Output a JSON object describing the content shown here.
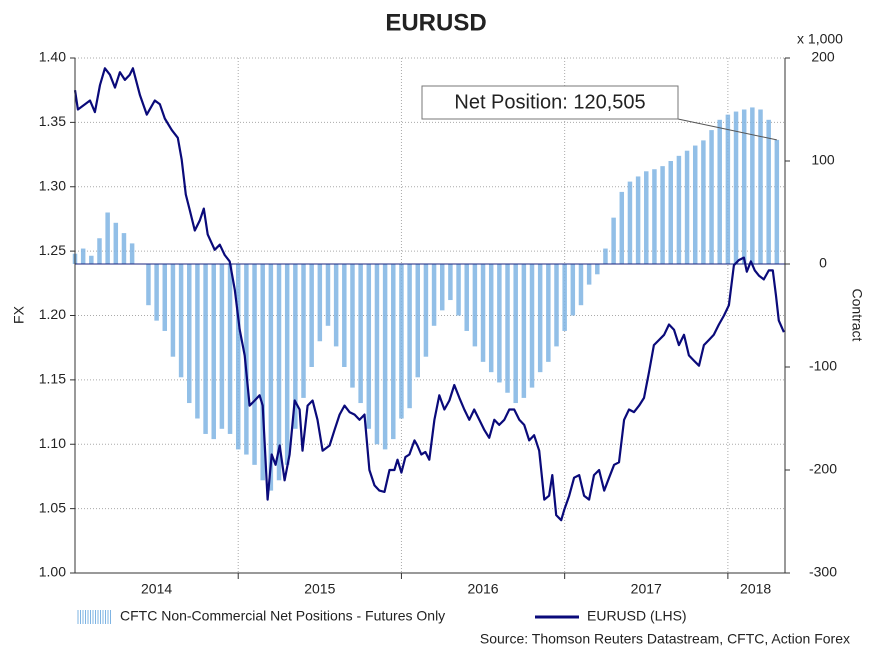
{
  "chart_data": {
    "type": "bar-line",
    "title": "EURUSD",
    "y_label": "FX",
    "y2_label": "Contract",
    "y2_unit": "x 1,000",
    "source": "Source: Thomson Reuters Datastream, CFTC, Action Forex",
    "annotation": "Net Position: 120,505",
    "xlim": [
      2014,
      2018.35
    ],
    "xticks": [
      {
        "value": 2014.5,
        "label": "2014"
      },
      {
        "value": 2015.5,
        "label": "2015"
      },
      {
        "value": 2016.5,
        "label": "2016"
      },
      {
        "value": 2017.5,
        "label": "2017"
      },
      {
        "value": 2018.17,
        "label": "2018"
      }
    ],
    "xgrid": [
      2015,
      2016,
      2017,
      2018
    ],
    "ylim": [
      1.0,
      1.4
    ],
    "yticks": [
      {
        "value": 1,
        "label": "1.00"
      },
      1.05,
      {
        "value": 1.1,
        "label": "1.10"
      },
      1.15,
      {
        "value": 1.2,
        "label": "1.20"
      },
      1.25,
      {
        "value": 1.3,
        "label": "1.30"
      },
      1.35,
      {
        "value": 1.4,
        "label": "1.40"
      }
    ],
    "y2lim": [
      -300,
      200
    ],
    "y2ticks": [
      200,
      100,
      0,
      -100,
      -200,
      -300
    ],
    "grid": true,
    "series": [
      {
        "name": "CFTC Non-Commercial Net Positions - Futures Only",
        "type": "bar",
        "axis": "y2",
        "color": "#7fb4e3",
        "x": [
          2014.0,
          2014.05,
          2014.1,
          2014.15,
          2014.2,
          2014.25,
          2014.3,
          2014.35,
          2014.4,
          2014.45,
          2014.5,
          2014.55,
          2014.6,
          2014.65,
          2014.7,
          2014.75,
          2014.8,
          2014.85,
          2014.9,
          2014.95,
          2015.0,
          2015.05,
          2015.1,
          2015.15,
          2015.2,
          2015.25,
          2015.3,
          2015.35,
          2015.4,
          2015.45,
          2015.5,
          2015.55,
          2015.6,
          2015.65,
          2015.7,
          2015.75,
          2015.8,
          2015.85,
          2015.9,
          2015.95,
          2016.0,
          2016.05,
          2016.1,
          2016.15,
          2016.2,
          2016.25,
          2016.3,
          2016.35,
          2016.4,
          2016.45,
          2016.5,
          2016.55,
          2016.6,
          2016.65,
          2016.7,
          2016.75,
          2016.8,
          2016.85,
          2016.9,
          2016.95,
          2017.0,
          2017.05,
          2017.1,
          2017.15,
          2017.2,
          2017.25,
          2017.3,
          2017.35,
          2017.4,
          2017.45,
          2017.5,
          2017.55,
          2017.6,
          2017.65,
          2017.7,
          2017.75,
          2017.8,
          2017.85,
          2017.9,
          2017.95,
          2018.0,
          2018.05,
          2018.1,
          2018.15,
          2018.2,
          2018.25,
          2018.3
        ],
        "values": [
          10,
          15,
          8,
          25,
          50,
          40,
          30,
          20,
          0,
          -40,
          -55,
          -65,
          -90,
          -110,
          -135,
          -150,
          -165,
          -170,
          -160,
          -165,
          -180,
          -185,
          -195,
          -210,
          -220,
          -210,
          -195,
          -160,
          -130,
          -100,
          -75,
          -60,
          -80,
          -100,
          -120,
          -135,
          -160,
          -175,
          -180,
          -170,
          -150,
          -140,
          -110,
          -90,
          -60,
          -45,
          -35,
          -50,
          -65,
          -80,
          -95,
          -105,
          -115,
          -125,
          -135,
          -130,
          -120,
          -105,
          -95,
          -80,
          -65,
          -50,
          -40,
          -20,
          -10,
          15,
          45,
          70,
          80,
          85,
          90,
          92,
          95,
          100,
          105,
          110,
          115,
          120,
          130,
          140,
          145,
          148,
          150,
          152,
          150,
          140,
          120.505
        ]
      },
      {
        "name": "EURUSD (LHS)",
        "type": "line",
        "axis": "y",
        "color": "#0a0a7a",
        "x": [
          2014.0,
          2014.018,
          2014.061,
          2014.092,
          2014.122,
          2014.153,
          2014.183,
          2014.214,
          2014.245,
          2014.275,
          2014.306,
          2014.336,
          2014.355,
          2014.398,
          2014.44,
          2014.489,
          2014.52,
          2014.55,
          2014.593,
          2014.63,
          2014.654,
          2014.679,
          2014.703,
          2014.734,
          2014.765,
          2014.789,
          2014.813,
          2014.856,
          2014.887,
          2014.917,
          2014.948,
          2014.979,
          2015.009,
          2015.04,
          2015.07,
          2015.101,
          2015.131,
          2015.15,
          2015.18,
          2015.205,
          2015.229,
          2015.254,
          2015.284,
          2015.315,
          2015.346,
          2015.376,
          2015.394,
          2015.425,
          2015.456,
          2015.486,
          2015.517,
          2015.56,
          2015.59,
          2015.621,
          2015.651,
          2015.682,
          2015.713,
          2015.743,
          2015.774,
          2015.804,
          2015.835,
          2015.865,
          2015.896,
          2015.927,
          2015.957,
          2015.976,
          2016.0,
          2016.024,
          2016.049,
          2016.08,
          2016.098,
          2016.122,
          2016.147,
          2016.171,
          2016.202,
          2016.232,
          2016.263,
          2016.294,
          2016.324,
          2016.355,
          2016.385,
          2016.416,
          2016.446,
          2016.477,
          2016.508,
          2016.538,
          2016.569,
          2016.599,
          2016.63,
          2016.661,
          2016.691,
          2016.722,
          2016.752,
          2016.783,
          2016.813,
          2016.844,
          2016.875,
          2016.905,
          2016.924,
          2016.948,
          2016.979,
          2016.997,
          2017.028,
          2017.058,
          2017.089,
          2017.119,
          2017.15,
          2017.18,
          2017.211,
          2017.242,
          2017.272,
          2017.303,
          2017.333,
          2017.364,
          2017.394,
          2017.425,
          2017.456,
          2017.486,
          2017.517,
          2017.547,
          2017.578,
          2017.609,
          2017.639,
          2017.67,
          2017.7,
          2017.731,
          2017.761,
          2017.792,
          2017.823,
          2017.853,
          2017.884,
          2017.914,
          2017.945,
          2017.976,
          2018.006,
          2018.037,
          2018.067,
          2018.098,
          2018.116,
          2018.141,
          2018.165,
          2018.19,
          2018.22,
          2018.251,
          2018.275,
          2018.294,
          2018.312,
          2018.343
        ],
        "values": [
          1.375,
          1.36,
          1.364,
          1.367,
          1.358,
          1.379,
          1.392,
          1.387,
          1.377,
          1.389,
          1.383,
          1.387,
          1.392,
          1.371,
          1.356,
          1.367,
          1.364,
          1.353,
          1.344,
          1.338,
          1.321,
          1.294,
          1.282,
          1.266,
          1.274,
          1.283,
          1.263,
          1.251,
          1.255,
          1.247,
          1.242,
          1.22,
          1.189,
          1.169,
          1.13,
          1.134,
          1.138,
          1.13,
          1.057,
          1.092,
          1.084,
          1.099,
          1.072,
          1.092,
          1.134,
          1.127,
          1.095,
          1.13,
          1.134,
          1.119,
          1.095,
          1.099,
          1.111,
          1.123,
          1.13,
          1.125,
          1.123,
          1.119,
          1.123,
          1.08,
          1.068,
          1.064,
          1.063,
          1.08,
          1.08,
          1.088,
          1.078,
          1.09,
          1.092,
          1.103,
          1.099,
          1.092,
          1.094,
          1.088,
          1.119,
          1.138,
          1.127,
          1.134,
          1.146,
          1.136,
          1.127,
          1.119,
          1.127,
          1.119,
          1.111,
          1.105,
          1.119,
          1.115,
          1.119,
          1.127,
          1.127,
          1.119,
          1.115,
          1.103,
          1.107,
          1.095,
          1.057,
          1.06,
          1.076,
          1.045,
          1.041,
          1.049,
          1.06,
          1.074,
          1.076,
          1.06,
          1.057,
          1.076,
          1.08,
          1.064,
          1.074,
          1.084,
          1.086,
          1.119,
          1.127,
          1.125,
          1.13,
          1.136,
          1.156,
          1.177,
          1.181,
          1.185,
          1.193,
          1.189,
          1.177,
          1.185,
          1.169,
          1.165,
          1.161,
          1.177,
          1.181,
          1.185,
          1.193,
          1.2,
          1.208,
          1.239,
          1.243,
          1.245,
          1.234,
          1.242,
          1.235,
          1.231,
          1.228,
          1.235,
          1.235,
          1.216,
          1.196,
          1.187
        ]
      }
    ]
  }
}
